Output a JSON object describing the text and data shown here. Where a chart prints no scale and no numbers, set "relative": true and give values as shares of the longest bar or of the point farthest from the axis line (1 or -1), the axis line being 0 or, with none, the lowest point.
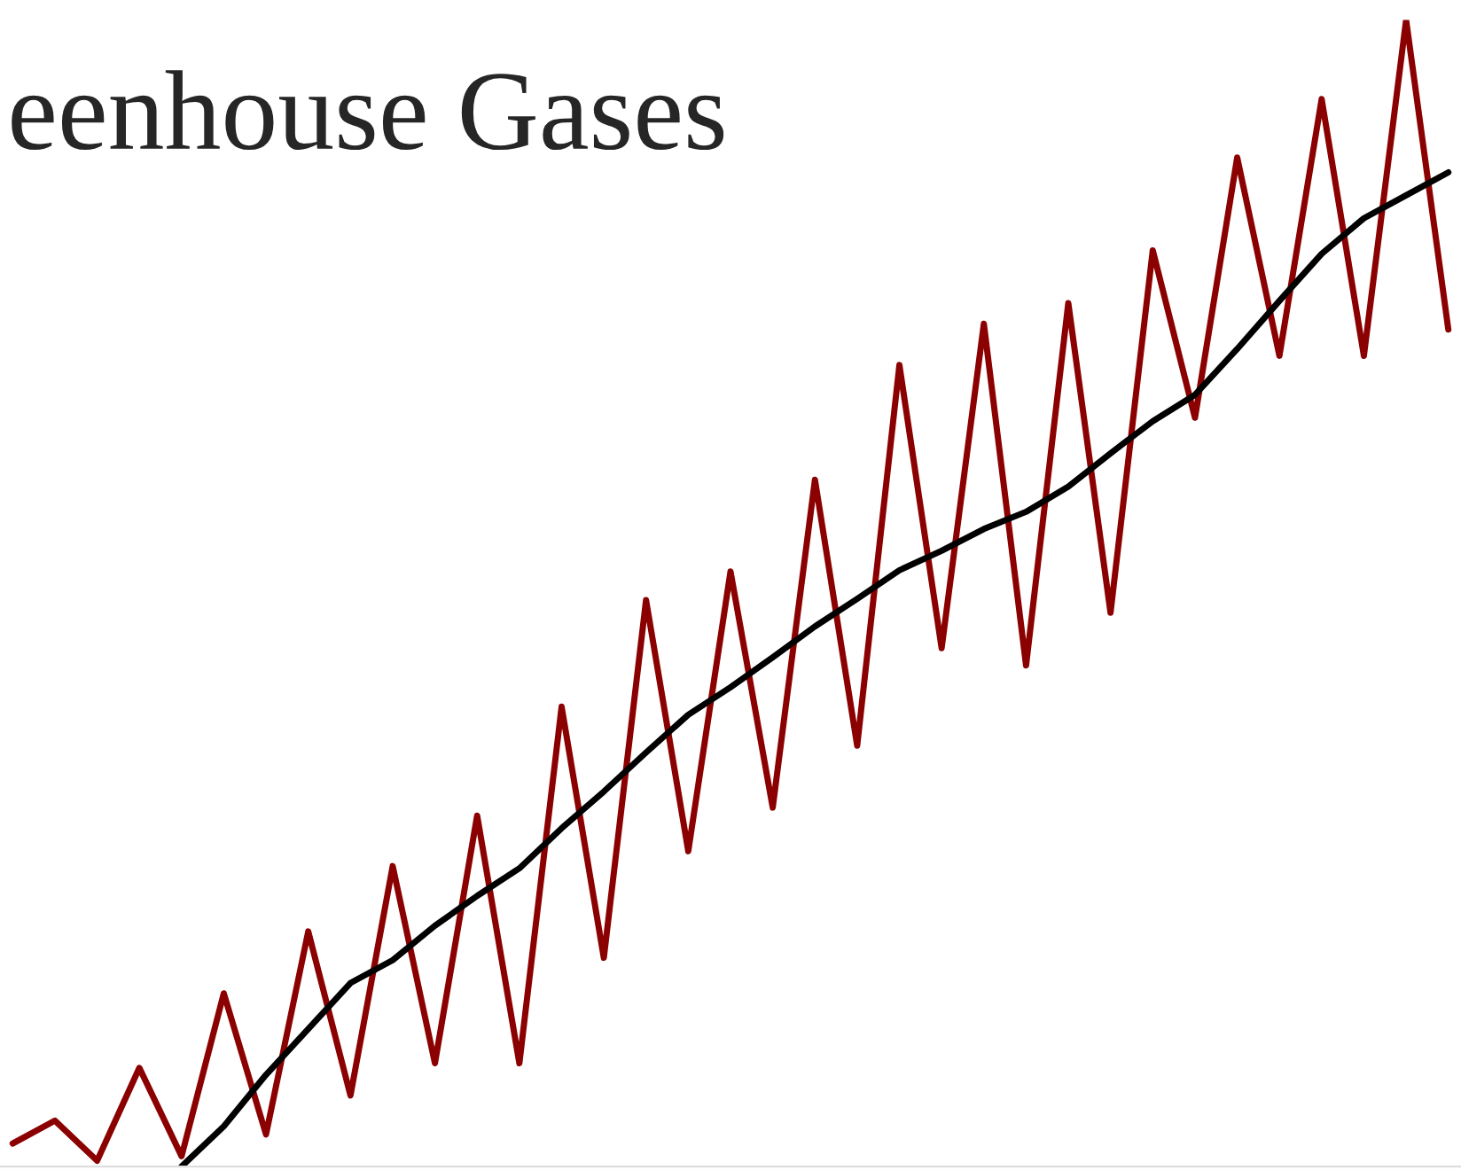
{
  "chart_data": {
    "type": "line",
    "title": "eenhouse Gases",
    "relative": true,
    "categories": [
      null,
      null,
      null,
      null,
      null,
      null,
      null,
      null,
      null,
      null,
      null,
      null,
      null,
      null,
      null,
      null,
      null,
      null,
      null,
      null,
      null,
      null,
      null,
      null,
      null,
      null,
      null,
      null,
      null,
      null,
      null,
      null,
      null,
      null,
      null
    ],
    "series": [
      {
        "color": "#8b0000",
        "values": [
          0.02,
          0.04,
          0.005,
          0.086,
          0.009,
          0.151,
          0.028,
          0.205,
          0.062,
          0.262,
          0.09,
          0.306,
          0.09,
          0.401,
          0.182,
          0.494,
          0.275,
          0.519,
          0.313,
          0.599,
          0.367,
          0.699,
          0.452,
          0.735,
          0.437,
          0.753,
          0.483,
          0.799,
          0.653,
          0.88,
          0.707,
          0.931,
          0.707,
          1.0,
          0.73
        ]
      },
      {
        "color": "#000000",
        "values": [
          null,
          null,
          null,
          null,
          0.0,
          0.035,
          0.08,
          0.12,
          0.16,
          0.18,
          0.21,
          0.236,
          0.26,
          0.295,
          0.327,
          0.361,
          0.394,
          0.418,
          0.444,
          0.471,
          0.495,
          0.52,
          0.537,
          0.556,
          0.571,
          0.593,
          0.622,
          0.65,
          0.673,
          0.713,
          0.755,
          0.796,
          0.827,
          0.847,
          0.867
        ]
      }
    ]
  }
}
